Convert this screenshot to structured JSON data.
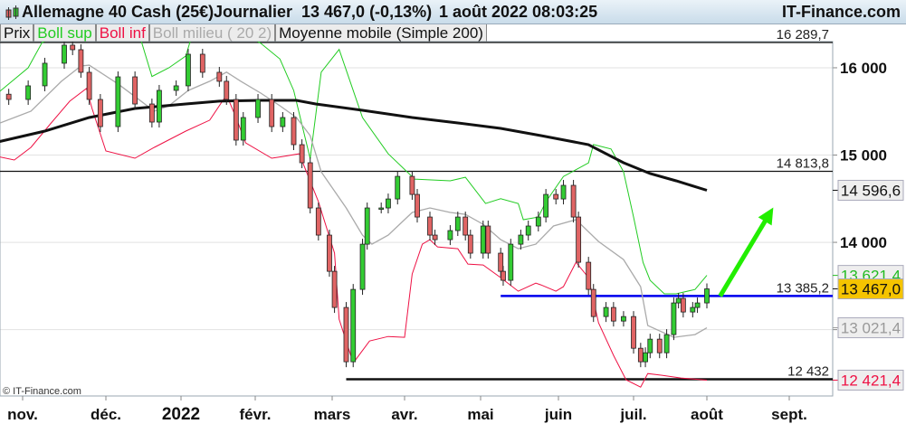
{
  "header": {
    "title": "Allemagne 40 Cash (25€)",
    "period": "Journalier",
    "last": "13 467,0 (-0,13%)",
    "datetime": "1 août 2022 08:03:25",
    "brand": "IT-Finance.com",
    "icon": "candlestick-icon"
  },
  "legend": [
    {
      "label": "Prix",
      "color": "#111111"
    },
    {
      "label": "Boll sup",
      "color": "#22cc22"
    },
    {
      "label": "Boll inf",
      "color": "#ee1144"
    },
    {
      "label": "Boll milieu ( 20 2)",
      "color": "#aaaaaa"
    },
    {
      "label": "Moyenne mobile (Simple 200)",
      "color": "#111111"
    }
  ],
  "copyright": "© IT-Finance.com",
  "chart_data": {
    "type": "candlestick",
    "ylim": [
      12240,
      16300
    ],
    "y_ticks": [
      {
        "v": 16000,
        "label": "16 000"
      },
      {
        "v": 15000,
        "label": "15 000"
      },
      {
        "v": 14000,
        "label": "14 000"
      },
      {
        "v": 13000,
        "label": ""
      }
    ],
    "x_ticks": [
      {
        "d": "2021-11-01",
        "label": "nov."
      },
      {
        "d": "2021-12-01",
        "label": "déc."
      },
      {
        "d": "2022-01-01",
        "label": "2022"
      },
      {
        "d": "2022-02-01",
        "label": "févr."
      },
      {
        "d": "2022-03-01",
        "label": "mars"
      },
      {
        "d": "2022-04-01",
        "label": "avr."
      },
      {
        "d": "2022-05-01",
        "label": "mai"
      },
      {
        "d": "2022-06-01",
        "label": "juin"
      },
      {
        "d": "2022-07-01",
        "label": "juil."
      },
      {
        "d": "2022-08-01",
        "label": "août"
      },
      {
        "d": "2022-09-01",
        "label": "sept."
      }
    ],
    "closes": [
      [
        "2021-10-27",
        15637
      ],
      [
        "2021-11-03",
        15793
      ],
      [
        "2021-11-09",
        16052
      ],
      [
        "2021-11-16",
        16259
      ],
      [
        "2021-11-19",
        16207
      ],
      [
        "2021-11-22",
        15948
      ],
      [
        "2021-11-25",
        15637
      ],
      [
        "2021-11-29",
        15326
      ],
      [
        "2021-12-06",
        15896
      ],
      [
        "2021-12-13",
        15585
      ],
      [
        "2021-12-20",
        15378
      ],
      [
        "2021-12-23",
        15741
      ],
      [
        "2021-12-30",
        15793
      ],
      [
        "2022-01-04",
        16155
      ],
      [
        "2022-01-10",
        15948
      ],
      [
        "2022-01-17",
        15845
      ],
      [
        "2022-01-20",
        15637
      ],
      [
        "2022-01-24",
        15171
      ],
      [
        "2022-01-27",
        15430
      ],
      [
        "2022-02-02",
        15637
      ],
      [
        "2022-02-07",
        15326
      ],
      [
        "2022-02-11",
        15430
      ],
      [
        "2022-02-15",
        15119
      ],
      [
        "2022-02-18",
        14912
      ],
      [
        "2022-02-21",
        14394
      ],
      [
        "2022-02-24",
        14083
      ],
      [
        "2022-02-28",
        13668
      ],
      [
        "2022-03-02",
        13254
      ],
      [
        "2022-03-07",
        12632
      ],
      [
        "2022-03-10",
        13461
      ],
      [
        "2022-03-14",
        13979
      ],
      [
        "2022-03-16",
        14394
      ],
      [
        "2022-03-22",
        14394
      ],
      [
        "2022-03-25",
        14497
      ],
      [
        "2022-03-29",
        14756
      ],
      [
        "2022-04-04",
        14549
      ],
      [
        "2022-04-06",
        14290
      ],
      [
        "2022-04-11",
        14083
      ],
      [
        "2022-04-13",
        14031
      ],
      [
        "2022-04-19",
        14135
      ],
      [
        "2022-04-22",
        14290
      ],
      [
        "2022-04-25",
        14083
      ],
      [
        "2022-04-27",
        13876
      ],
      [
        "2022-05-02",
        14187
      ],
      [
        "2022-05-04",
        13876
      ],
      [
        "2022-05-09",
        13668
      ],
      [
        "2022-05-10",
        13565
      ],
      [
        "2022-05-13",
        13979
      ],
      [
        "2022-05-17",
        14083
      ],
      [
        "2022-05-20",
        14187
      ],
      [
        "2022-05-24",
        14290
      ],
      [
        "2022-05-27",
        14549
      ],
      [
        "2022-05-31",
        14497
      ],
      [
        "2022-06-03",
        14653
      ],
      [
        "2022-06-07",
        14290
      ],
      [
        "2022-06-09",
        13772
      ],
      [
        "2022-06-13",
        13461
      ],
      [
        "2022-06-15",
        13150
      ],
      [
        "2022-06-20",
        13254
      ],
      [
        "2022-06-23",
        13098
      ],
      [
        "2022-06-27",
        13150
      ],
      [
        "2022-07-01",
        12787
      ],
      [
        "2022-07-04",
        12632
      ],
      [
        "2022-07-06",
        12735
      ],
      [
        "2022-07-08",
        12891
      ],
      [
        "2022-07-12",
        12735
      ],
      [
        "2022-07-15",
        12943
      ],
      [
        "2022-07-18",
        13306
      ],
      [
        "2022-07-20",
        13358
      ],
      [
        "2022-07-22",
        13202
      ],
      [
        "2022-07-26",
        13254
      ],
      [
        "2022-07-28",
        13306
      ],
      [
        "2022-08-01",
        13467
      ]
    ],
    "series": [
      {
        "name": "Boll sup",
        "color": "#22cc22",
        "width": 1,
        "points": [
          [
            "2021-10-23",
            15710
          ],
          [
            "2021-11-03",
            16000
          ],
          [
            "2021-11-08",
            16290
          ],
          [
            "2021-11-25",
            16520
          ],
          [
            "2021-12-15",
            16360
          ],
          [
            "2021-12-20",
            15900
          ],
          [
            "2021-12-27",
            16000
          ],
          [
            "2022-01-03",
            16135
          ],
          [
            "2022-01-06",
            16410
          ],
          [
            "2022-01-18",
            16310
          ],
          [
            "2022-01-26",
            16410
          ],
          [
            "2022-02-03",
            16280
          ],
          [
            "2022-02-10",
            16100
          ],
          [
            "2022-02-15",
            15740
          ],
          [
            "2022-02-21",
            14960
          ],
          [
            "2022-02-25",
            15950
          ],
          [
            "2022-03-04",
            16210
          ],
          [
            "2022-03-14",
            15430
          ],
          [
            "2022-03-25",
            15015
          ],
          [
            "2022-04-05",
            14725
          ],
          [
            "2022-04-19",
            14705
          ],
          [
            "2022-04-25",
            14745
          ],
          [
            "2022-05-03",
            14445
          ],
          [
            "2022-05-09",
            14500
          ],
          [
            "2022-05-16",
            14445
          ],
          [
            "2022-05-18",
            14260
          ],
          [
            "2022-05-24",
            14290
          ],
          [
            "2022-05-27",
            14465
          ],
          [
            "2022-06-03",
            14755
          ],
          [
            "2022-06-13",
            14910
          ],
          [
            "2022-06-15",
            15120
          ],
          [
            "2022-06-22",
            15070
          ],
          [
            "2022-06-27",
            14810
          ],
          [
            "2022-07-01",
            14290
          ],
          [
            "2022-07-05",
            13770
          ],
          [
            "2022-07-08",
            13565
          ],
          [
            "2022-07-14",
            13410
          ],
          [
            "2022-07-19",
            13410
          ],
          [
            "2022-07-27",
            13460
          ],
          [
            "2022-08-01",
            13621.4
          ]
        ]
      },
      {
        "name": "Boll inf",
        "color": "#ee1144",
        "width": 1,
        "points": [
          [
            "2021-10-23",
            14984
          ],
          [
            "2021-10-29",
            14943
          ],
          [
            "2021-11-04",
            15088
          ],
          [
            "2021-11-11",
            15357
          ],
          [
            "2021-11-18",
            15617
          ],
          [
            "2021-11-24",
            15762
          ],
          [
            "2021-11-26",
            15534
          ],
          [
            "2021-12-01",
            15047
          ],
          [
            "2021-12-13",
            14964
          ],
          [
            "2021-12-21",
            15088
          ],
          [
            "2022-01-03",
            15275
          ],
          [
            "2022-01-13",
            15400
          ],
          [
            "2022-01-20",
            15689
          ],
          [
            "2022-01-24",
            15430
          ],
          [
            "2022-01-28",
            15140
          ],
          [
            "2022-02-07",
            14964
          ],
          [
            "2022-02-11",
            14984
          ],
          [
            "2022-02-17",
            15015
          ],
          [
            "2022-02-24",
            14466
          ],
          [
            "2022-03-02",
            13876
          ],
          [
            "2022-03-04",
            13119
          ],
          [
            "2022-03-09",
            12705
          ],
          [
            "2022-03-11",
            12653
          ],
          [
            "2022-03-17",
            12870
          ],
          [
            "2022-03-25",
            12922
          ],
          [
            "2022-04-01",
            12912
          ],
          [
            "2022-04-04",
            13637
          ],
          [
            "2022-04-08",
            13979
          ],
          [
            "2022-04-11",
            14031
          ],
          [
            "2022-04-14",
            13948
          ],
          [
            "2022-04-22",
            13927
          ],
          [
            "2022-04-26",
            13751
          ],
          [
            "2022-05-02",
            13741
          ],
          [
            "2022-05-09",
            13596
          ],
          [
            "2022-05-16",
            13440
          ],
          [
            "2022-05-23",
            13533
          ],
          [
            "2022-05-25",
            13513
          ],
          [
            "2022-05-31",
            13440
          ],
          [
            "2022-06-03",
            13492
          ],
          [
            "2022-06-08",
            13772
          ],
          [
            "2022-06-13",
            13596
          ],
          [
            "2022-06-17",
            13078
          ],
          [
            "2022-06-23",
            12705
          ],
          [
            "2022-06-28",
            12425
          ],
          [
            "2022-07-04",
            12342
          ],
          [
            "2022-07-07",
            12497
          ],
          [
            "2022-07-13",
            12477
          ],
          [
            "2022-07-21",
            12446
          ],
          [
            "2022-08-01",
            12421.4
          ]
        ]
      },
      {
        "name": "Boll milieu ( 20 2)",
        "color": "#aaaaaa",
        "width": 1.3,
        "points": [
          [
            "2021-10-23",
            15357
          ],
          [
            "2021-11-04",
            15503
          ],
          [
            "2021-11-15",
            15845
          ],
          [
            "2021-11-22",
            16020
          ],
          [
            "2021-11-25",
            16030
          ],
          [
            "2021-12-06",
            15815
          ],
          [
            "2021-12-13",
            15670
          ],
          [
            "2021-12-21",
            15503
          ],
          [
            "2021-12-27",
            15565
          ],
          [
            "2022-01-04",
            15740
          ],
          [
            "2022-01-13",
            15845
          ],
          [
            "2022-01-20",
            15950
          ],
          [
            "2022-01-26",
            15845
          ],
          [
            "2022-02-03",
            15710
          ],
          [
            "2022-02-10",
            15565
          ],
          [
            "2022-02-16",
            15430
          ],
          [
            "2022-02-21",
            15223
          ],
          [
            "2022-02-25",
            14808
          ],
          [
            "2022-03-07",
            14394
          ],
          [
            "2022-03-14",
            14083
          ],
          [
            "2022-03-18",
            13979
          ],
          [
            "2022-03-25",
            14083
          ],
          [
            "2022-04-04",
            14342
          ],
          [
            "2022-04-11",
            14394
          ],
          [
            "2022-04-19",
            14342
          ],
          [
            "2022-04-25",
            14321
          ],
          [
            "2022-05-02",
            14207
          ],
          [
            "2022-05-09",
            14031
          ],
          [
            "2022-05-16",
            13927
          ],
          [
            "2022-05-23",
            13979
          ],
          [
            "2022-05-30",
            14187
          ],
          [
            "2022-06-08",
            14260
          ],
          [
            "2022-06-17",
            14010
          ],
          [
            "2022-06-27",
            13803
          ],
          [
            "2022-07-04",
            13492
          ],
          [
            "2022-07-07",
            13047
          ],
          [
            "2022-07-18",
            12912
          ],
          [
            "2022-07-27",
            12943
          ],
          [
            "2022-08-01",
            13021.4
          ]
        ]
      },
      {
        "name": "Moyenne mobile (Simple 200)",
        "color": "#111111",
        "width": 3,
        "points": [
          [
            "2021-10-23",
            15150
          ],
          [
            "2021-11-09",
            15275
          ],
          [
            "2021-11-25",
            15430
          ],
          [
            "2021-12-13",
            15534
          ],
          [
            "2022-01-03",
            15585
          ],
          [
            "2022-01-17",
            15617
          ],
          [
            "2022-02-03",
            15627
          ],
          [
            "2022-02-16",
            15627
          ],
          [
            "2022-02-23",
            15585
          ],
          [
            "2022-03-14",
            15513
          ],
          [
            "2022-04-04",
            15430
          ],
          [
            "2022-04-22",
            15368
          ],
          [
            "2022-05-09",
            15306
          ],
          [
            "2022-05-25",
            15223
          ],
          [
            "2022-06-13",
            15119
          ],
          [
            "2022-06-27",
            14912
          ],
          [
            "2022-07-08",
            14788
          ],
          [
            "2022-07-19",
            14705
          ],
          [
            "2022-08-01",
            14596.6
          ]
        ]
      }
    ],
    "levels": [
      {
        "value": 16289.7,
        "label": "16 289,7",
        "from": null,
        "color": "#111111"
      },
      {
        "value": 14813.8,
        "label": "14 813,8",
        "from": null,
        "color": "#111111"
      },
      {
        "value": 13385.2,
        "label": "13 385,2",
        "from": "2022-05-09",
        "color": "#0000ee"
      },
      {
        "value": 12432,
        "label": "12 432",
        "from": "2022-03-07",
        "color": "#111111"
      }
    ],
    "price_tags": [
      {
        "value": 14596.6,
        "label": "14 596,6",
        "color": "#111111",
        "bg": "#eeeeee"
      },
      {
        "value": 13621.4,
        "label": "13 621,4",
        "color": "#22bb22",
        "bg": "#eeeeee"
      },
      {
        "value": 13467.0,
        "label": "13 467,0",
        "color": "#111111",
        "bg": "#f5c400"
      },
      {
        "value": 13021.4,
        "label": "13 021,4",
        "color": "#999999",
        "bg": "#eeeeee"
      },
      {
        "value": 12421.4,
        "label": "12 421,4",
        "color": "#ee1144",
        "bg": "#eeeeee"
      }
    ],
    "annotation": {
      "type": "arrow",
      "color": "#22ee00",
      "from": [
        "2022-08-06",
        13385.2
      ],
      "to": [
        "2022-08-26",
        14400
      ]
    },
    "up_color": "#33cc33",
    "down_color": "#e06464"
  }
}
